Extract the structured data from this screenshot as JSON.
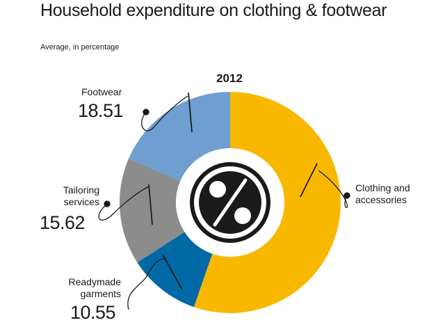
{
  "header": {
    "title": "Household expenditure on clothing  & footwear",
    "subtitle": "Average, in percentage"
  },
  "chart_data": {
    "type": "pie",
    "title": "2012",
    "categories": [
      "Clothing and accessories",
      "Readymade garments",
      "Tailoring services",
      "Footwear"
    ],
    "values": [
      55.32,
      10.55,
      15.62,
      18.51
    ],
    "colors": [
      "#f9b800",
      "#0069a6",
      "#8c8c8c",
      "#6e9fd0"
    ],
    "value_labels": [
      "",
      "10.55",
      "15.62",
      "18.51"
    ],
    "center_icon": "percent-badge-icon"
  }
}
